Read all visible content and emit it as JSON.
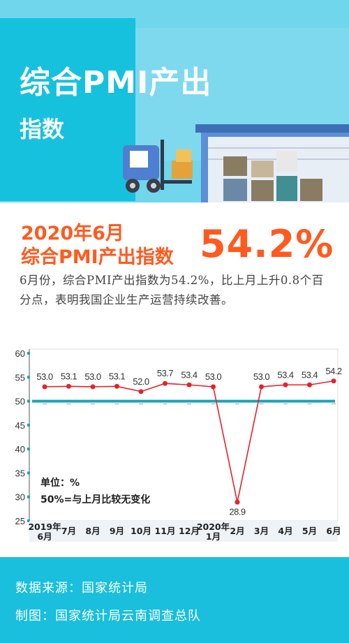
{
  "header": {
    "title_line1": "综合PMI产出",
    "title_line2": "指数"
  },
  "headline": {
    "date": "2020年6月",
    "name": "综合PMI产出指数",
    "value": "54.2%"
  },
  "description": "6月份，综合PMI产出指数为54.2%，比上月上升0.8个百分点，表明我国企业生产运营持续改善。",
  "chart_data": {
    "type": "line",
    "categories": [
      [
        "2019年",
        "6月"
      ],
      [
        "7月"
      ],
      [
        "8月"
      ],
      [
        "9月"
      ],
      [
        "10月"
      ],
      [
        "11月"
      ],
      [
        "12月"
      ],
      [
        "2020年",
        "1月"
      ],
      [
        "2月"
      ],
      [
        "3月"
      ],
      [
        "4月"
      ],
      [
        "5月"
      ],
      [
        "6月"
      ]
    ],
    "series": [
      {
        "values": [
          53.0,
          53.1,
          53.0,
          53.1,
          52.0,
          53.7,
          53.4,
          53.0,
          28.9,
          53.0,
          53.4,
          53.4,
          54.2
        ]
      }
    ],
    "data_labels": [
      "53.0",
      "53.1",
      "53.0",
      "53.1",
      "52.0",
      "53.7",
      "53.4",
      "53.0",
      "28.9",
      "53.0",
      "53.4",
      "53.4",
      "54.2"
    ],
    "reference_line": 50,
    "ylim": [
      25,
      60
    ],
    "yticks": [
      "25",
      "30",
      "35",
      "40",
      "45",
      "50",
      "55",
      "60"
    ],
    "annotation_unit": "单位：%",
    "annotation_ref": "50%=与上月比较无变化",
    "colors": {
      "line": "#e8202a",
      "marker": "#e8202a",
      "reference": "#1aa6b8"
    }
  },
  "footer": {
    "source": "数据来源：国家统计局",
    "maker": "制图：国家统计局云南调查总队"
  }
}
